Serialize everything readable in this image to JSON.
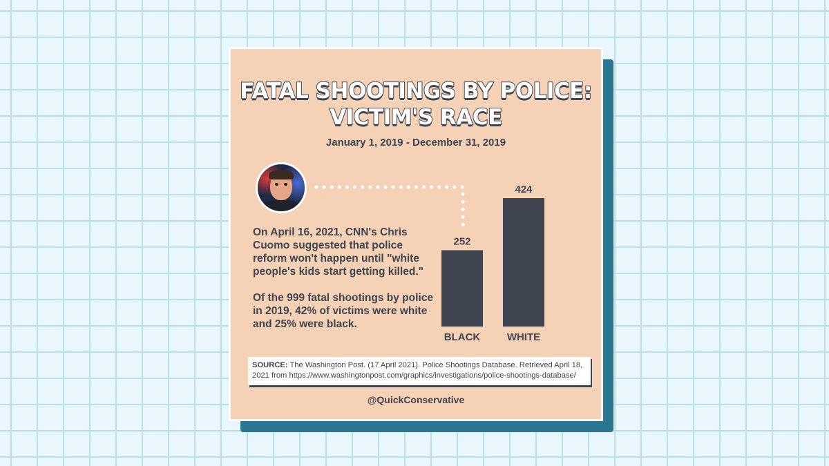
{
  "title": "FATAL SHOOTINGS BY POLICE: VICTIM'S RACE",
  "subtitle": "January 1, 2019 - December 31, 2019",
  "avatar_icon": "person-photo-icon",
  "callout": {
    "quote": "On April 16, 2021, CNN's Chris Cuomo suggested that police reform won't happen until \"white people's kids start getting killed.\"",
    "fact": "Of the 999 fatal shootings by police in 2019, 42% of victims were white and 25% were black."
  },
  "source": {
    "label": "SOURCE:",
    "text": "The Washington Post. (17 April 2021). Police Shootings Database. Retrieved April 18, 2021 from https://www.washingtonpost.com/graphics/investigations/police-shootings-database/"
  },
  "handle": "@QuickConservative",
  "colors": {
    "background_grid": "#e9f6fb",
    "card": "#f5d2b6",
    "card_shadow": "#2b7690",
    "bar": "#3e4450",
    "text": "#3e4450"
  },
  "chart_data": {
    "type": "bar",
    "categories": [
      "BLACK",
      "WHITE"
    ],
    "values": [
      252,
      424
    ],
    "title": "FATAL SHOOTINGS BY POLICE: VICTIM'S RACE",
    "xlabel": "",
    "ylabel": "",
    "ylim": [
      0,
      424
    ],
    "grid": false,
    "data_labels": [
      "252",
      "424"
    ]
  }
}
